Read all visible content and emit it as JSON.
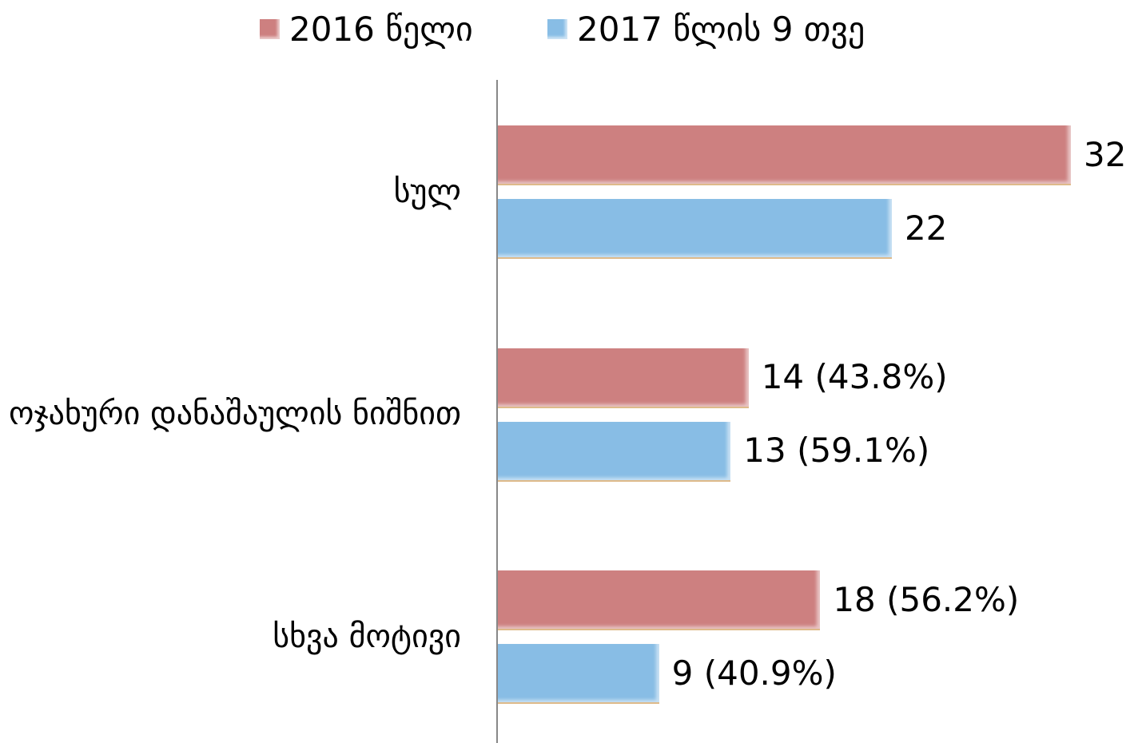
{
  "chart_data": {
    "type": "bar",
    "orientation": "horizontal",
    "categories": [
      "სულ",
      "ოჯახური დანაშაულის ნიშნით",
      "სხვა მოტივი"
    ],
    "series": [
      {
        "name": "2016 წელი",
        "color": "#cd8080",
        "values": [
          32,
          14,
          18
        ],
        "value_labels": [
          "32",
          "14 (43.8%)",
          "18 (56.2%)"
        ]
      },
      {
        "name": "2017 წლის 9 თვე",
        "color": "#88bde5",
        "values": [
          22,
          13,
          9
        ],
        "value_labels": [
          "22",
          "13 (59.1%)",
          "9 (40.9%)"
        ]
      }
    ],
    "legend": "top"
  }
}
